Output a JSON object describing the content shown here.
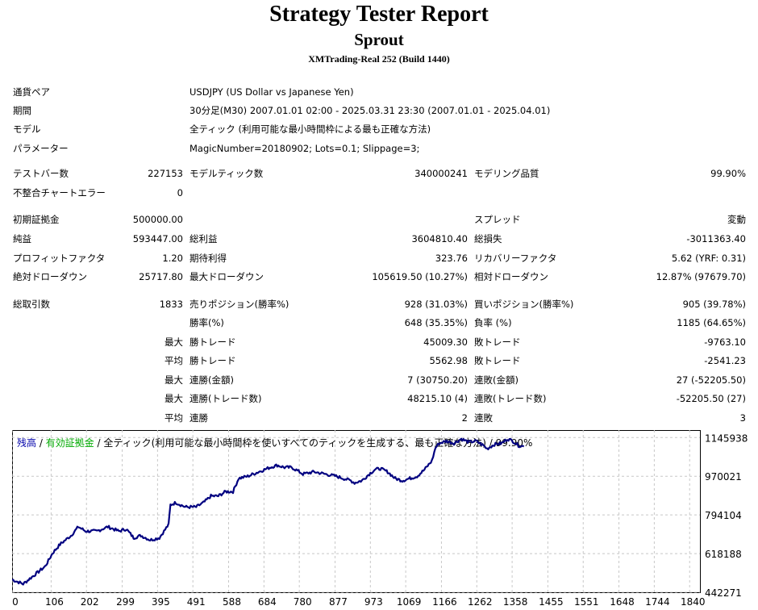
{
  "header": {
    "title": "Strategy Tester Report",
    "ea_name": "Sprout",
    "server": "XMTrading-Real 252 (Build 1440)"
  },
  "info": {
    "symbol_label": "通貨ペア",
    "symbol_value": "USDJPY (US Dollar vs Japanese Yen)",
    "period_label": "期間",
    "period_value": "30分足(M30) 2007.01.01 02:00 - 2025.03.31 23:30 (2007.01.01 - 2025.04.01)",
    "model_label": "モデル",
    "model_value": "全ティック (利用可能な最小時間枠による最も正確な方法)",
    "params_label": "パラメーター",
    "params_value": "MagicNumber=20180902; Lots=0.1; Slippage=3;"
  },
  "stats": {
    "bars_label": "テストバー数",
    "bars": "227153",
    "ticks_label": "モデルティック数",
    "ticks": "340000241",
    "quality_label": "モデリング品質",
    "quality": "99.90%",
    "mismatch_label": "不整合チャートエラー",
    "mismatch": "0",
    "deposit_label": "初期証拠金",
    "deposit": "500000.00",
    "spread_label": "スプレッド",
    "spread": "変動",
    "net_label": "純益",
    "net": "593447.00",
    "gross_profit_label": "総利益",
    "gross_profit": "3604810.40",
    "gross_loss_label": "総損失",
    "gross_loss": "-3011363.40",
    "pf_label": "プロフィットファクタ",
    "pf": "1.20",
    "expected_label": "期待利得",
    "expected": "323.76",
    "recovery_label": "リカバリーファクタ",
    "recovery": "5.62 (YRF: 0.31)",
    "abs_dd_label": "絶対ドローダウン",
    "abs_dd": "25717.80",
    "max_dd_label": "最大ドローダウン",
    "max_dd": "105619.50 (10.27%)",
    "rel_dd_label": "相対ドローダウン",
    "rel_dd": "12.87% (97679.70)",
    "total_trades_label": "総取引数",
    "total_trades": "1833",
    "short_label": "売りポジション(勝率%)",
    "short": "928 (31.03%)",
    "long_label": "買いポジション(勝率%)",
    "long": "905 (39.78%)",
    "win_label": "勝率(%)",
    "win": "648 (35.35%)",
    "loss_label": "負率 (%)",
    "loss": "1185 (64.65%)",
    "max_word": "最大",
    "avg_word": "平均",
    "largest_profit_label": "勝トレード",
    "largest_profit": "45009.30",
    "largest_loss_label": "敗トレード",
    "largest_loss": "-9763.10",
    "avg_profit_label": "勝トレード",
    "avg_profit": "5562.98",
    "avg_loss_label": "敗トレード",
    "avg_loss": "-2541.23",
    "max_cons_wins_label": "連勝(金額)",
    "max_cons_wins": "7 (30750.20)",
    "max_cons_losses_label": "連敗(金額)",
    "max_cons_losses": "27 (-52205.50)",
    "max_cons_profit_label": "連勝(トレード数)",
    "max_cons_profit": "48215.10 (4)",
    "max_cons_loss_label": "連敗(トレード数)",
    "max_cons_loss": "-52205.50 (27)",
    "avg_cons_wins_label": "連勝",
    "avg_cons_wins": "2",
    "avg_cons_losses_label": "連敗",
    "avg_cons_losses": "3"
  },
  "chart_legend": {
    "balance": "残高",
    "sep1": " / ",
    "equity": "有効証拠金",
    "sep2": " / ",
    "desc": "全ティック(利用可能な最小時間枠を使いすべてのティックを生成する、最も正確な方法) / 99.90%"
  },
  "colors": {
    "balance": "#0000aa",
    "equity": "#00aa00",
    "line": "#000080",
    "grid": "#c8c8c8"
  },
  "chart_data": {
    "type": "line",
    "title": "",
    "xlabel": "",
    "ylabel": "",
    "x_ticks": [
      0,
      106,
      202,
      299,
      395,
      491,
      588,
      684,
      780,
      877,
      973,
      1069,
      1166,
      1262,
      1358,
      1455,
      1551,
      1648,
      1744,
      1840
    ],
    "y_ticks": [
      442271,
      618188,
      794104,
      970021,
      1145938
    ],
    "xlim": [
      0,
      1868
    ],
    "ylim": [
      442271,
      1180000
    ],
    "grid": true,
    "series": [
      {
        "values_xy": [
          [
            0,
            500000
          ],
          [
            30,
            480000
          ],
          [
            60,
            520000
          ],
          [
            90,
            560000
          ],
          [
            110,
            620000
          ],
          [
            130,
            660000
          ],
          [
            160,
            700000
          ],
          [
            180,
            740000
          ],
          [
            200,
            720000
          ],
          [
            230,
            720000
          ],
          [
            260,
            740000
          ],
          [
            290,
            720000
          ],
          [
            310,
            730000
          ],
          [
            330,
            690000
          ],
          [
            350,
            700000
          ],
          [
            375,
            680000
          ],
          [
            400,
            690000
          ],
          [
            425,
            750000
          ],
          [
            430,
            840000
          ],
          [
            445,
            850000
          ],
          [
            470,
            830000
          ],
          [
            500,
            830000
          ],
          [
            520,
            850000
          ],
          [
            540,
            880000
          ],
          [
            560,
            880000
          ],
          [
            580,
            900000
          ],
          [
            600,
            900000
          ],
          [
            615,
            960000
          ],
          [
            640,
            970000
          ],
          [
            670,
            990000
          ],
          [
            700,
            1010000
          ],
          [
            720,
            1020000
          ],
          [
            740,
            1010000
          ],
          [
            760,
            1010000
          ],
          [
            790,
            980000
          ],
          [
            820,
            990000
          ],
          [
            850,
            980000
          ],
          [
            880,
            970000
          ],
          [
            920,
            950000
          ],
          [
            930,
            940000
          ],
          [
            950,
            950000
          ],
          [
            970,
            980000
          ],
          [
            985,
            1000000
          ],
          [
            1000,
            1005000
          ],
          [
            1020,
            990000
          ],
          [
            1040,
            960000
          ],
          [
            1060,
            950000
          ],
          [
            1080,
            960000
          ],
          [
            1100,
            970000
          ],
          [
            1120,
            1000000
          ],
          [
            1140,
            1040000
          ],
          [
            1150,
            1100000
          ],
          [
            1160,
            1120000
          ],
          [
            1180,
            1130000
          ],
          [
            1200,
            1120000
          ],
          [
            1220,
            1140000
          ],
          [
            1240,
            1125000
          ],
          [
            1260,
            1130000
          ],
          [
            1280,
            1110000
          ],
          [
            1290,
            1095000
          ],
          [
            1310,
            1115000
          ],
          [
            1330,
            1120000
          ],
          [
            1345,
            1140000
          ],
          [
            1360,
            1130000
          ],
          [
            1375,
            1110000
          ],
          [
            1390,
            1105000
          ]
        ]
      }
    ]
  }
}
